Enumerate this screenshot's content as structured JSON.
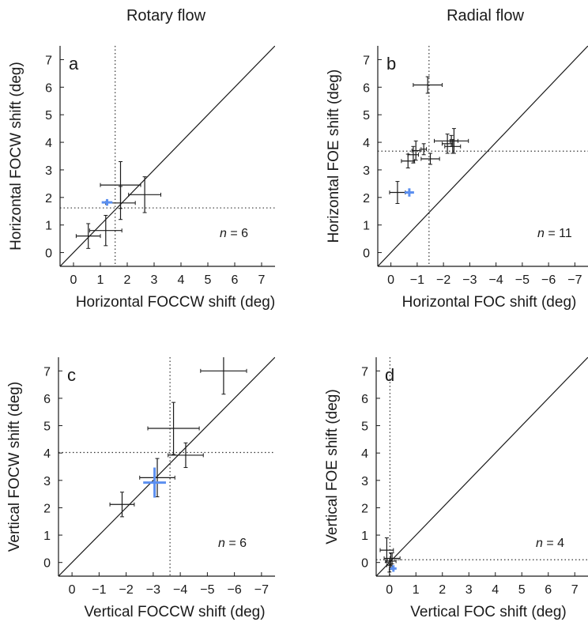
{
  "titles": {
    "left": "Rotary flow",
    "right": "Radial flow"
  },
  "chart_data": [
    {
      "panel": "a",
      "type": "scatter",
      "xlabel": "Horizontal FOCCW shift (deg)",
      "ylabel": "Horizontal FOCW shift (deg)",
      "xlim": [
        -0.5,
        7.5
      ],
      "ylim": [
        -0.5,
        7.5
      ],
      "x_ticks": [
        0,
        1,
        2,
        3,
        4,
        5,
        6,
        7
      ],
      "x_tick_labels": [
        "0",
        "1",
        "2",
        "3",
        "4",
        "5",
        "6",
        "7"
      ],
      "y_ticks": [
        0,
        1,
        2,
        3,
        4,
        5,
        6,
        7
      ],
      "y_tick_labels": [
        "0",
        "1",
        "2",
        "3",
        "4",
        "5",
        "6",
        "7"
      ],
      "n_label": "= 6",
      "n_symbol": "n",
      "ref_x": 1.55,
      "ref_y": 1.62,
      "diagonal": true,
      "points": [
        {
          "x": 0.55,
          "y": 0.6,
          "xerr": 0.45,
          "yerr": 0.45
        },
        {
          "x": 1.2,
          "y": 0.8,
          "xerr": 0.6,
          "yerr": 0.55
        },
        {
          "x": 1.75,
          "y": 1.8,
          "xerr": 0.55,
          "yerr": 0.6
        },
        {
          "x": 1.75,
          "y": 2.45,
          "xerr": 0.75,
          "yerr": 0.85
        },
        {
          "x": 2.65,
          "y": 2.1,
          "xerr": 0.6,
          "yerr": 0.65
        },
        {
          "x": 1.25,
          "y": 1.82,
          "xerr": 0.2,
          "yerr": 0.12,
          "highlight": true
        }
      ]
    },
    {
      "panel": "b",
      "type": "scatter",
      "xlabel": "Horizontal FOC shift (deg)",
      "ylabel": "Horizontal FOE shift (deg)",
      "xlim": [
        0.5,
        -7.5
      ],
      "ylim": [
        -0.5,
        7.5
      ],
      "x_ticks": [
        0,
        -1,
        -2,
        -3,
        -4,
        -5,
        -6,
        -7
      ],
      "x_tick_labels": [
        "0",
        "−1",
        "−2",
        "−3",
        "−4",
        "−5",
        "−6",
        "−7"
      ],
      "y_ticks": [
        0,
        1,
        2,
        3,
        4,
        5,
        6,
        7
      ],
      "y_tick_labels": [
        "0",
        "1",
        "2",
        "3",
        "4",
        "5",
        "6",
        "7"
      ],
      "n_label": "= 11",
      "n_symbol": "n",
      "ref_x": -1.45,
      "ref_y": 3.68,
      "diagonal": true,
      "points": [
        {
          "x": -0.25,
          "y": 2.18,
          "xerr": 0.3,
          "yerr": 0.4
        },
        {
          "x": -1.4,
          "y": 6.08,
          "xerr": 0.55,
          "yerr": 0.3
        },
        {
          "x": -0.65,
          "y": 3.32,
          "xerr": 0.25,
          "yerr": 0.25
        },
        {
          "x": -0.85,
          "y": 3.55,
          "xerr": 0.2,
          "yerr": 0.3
        },
        {
          "x": -0.95,
          "y": 3.7,
          "xerr": 0.15,
          "yerr": 0.35
        },
        {
          "x": -1.25,
          "y": 3.75,
          "xerr": 0.1,
          "yerr": 0.2
        },
        {
          "x": -1.5,
          "y": 3.4,
          "xerr": 0.35,
          "yerr": 0.2
        },
        {
          "x": -2.15,
          "y": 3.95,
          "xerr": 0.2,
          "yerr": 0.35
        },
        {
          "x": -2.3,
          "y": 4.05,
          "xerr": 0.65,
          "yerr": 0.2
        },
        {
          "x": -2.35,
          "y": 3.85,
          "xerr": 0.3,
          "yerr": 0.25
        },
        {
          "x": -2.4,
          "y": 4.05,
          "xerr": 0.15,
          "yerr": 0.45
        },
        {
          "x": -0.7,
          "y": 2.18,
          "xerr": 0.18,
          "yerr": 0.15,
          "highlight": true
        }
      ]
    },
    {
      "panel": "c",
      "type": "scatter",
      "xlabel": "Vertical FOCCW shift (deg)",
      "ylabel": "Vertical FOCW shift (deg)",
      "xlim": [
        0.5,
        -7.5
      ],
      "ylim": [
        -0.5,
        7.5
      ],
      "x_ticks": [
        0,
        -1,
        -2,
        -3,
        -4,
        -5,
        -6,
        -7
      ],
      "x_tick_labels": [
        "0",
        "−1",
        "−2",
        "−3",
        "−4",
        "−5",
        "−6",
        "−7"
      ],
      "y_ticks": [
        0,
        1,
        2,
        3,
        4,
        5,
        6,
        7
      ],
      "y_tick_labels": [
        "0",
        "1",
        "2",
        "3",
        "4",
        "5",
        "6",
        "7"
      ],
      "n_label": "= 6",
      "n_symbol": "n",
      "ref_x": -3.62,
      "ref_y": 4.02,
      "diagonal": true,
      "points": [
        {
          "x": -1.85,
          "y": 2.12,
          "xerr": 0.45,
          "yerr": 0.45
        },
        {
          "x": -3.15,
          "y": 3.1,
          "xerr": 0.65,
          "yerr": 0.7
        },
        {
          "x": -3.75,
          "y": 4.9,
          "xerr": 0.95,
          "yerr": 0.95
        },
        {
          "x": -4.2,
          "y": 3.92,
          "xerr": 0.65,
          "yerr": 0.45
        },
        {
          "x": -5.6,
          "y": 7.0,
          "xerr": 0.85,
          "yerr": 0.85
        },
        {
          "x": -3.05,
          "y": 2.92,
          "xerr": 0.42,
          "yerr": 0.55,
          "highlight": true
        }
      ]
    },
    {
      "panel": "d",
      "type": "scatter",
      "xlabel": "Vertical FOC shift (deg)",
      "ylabel": "Vertical FOE shift (deg)",
      "xlim": [
        -0.5,
        7.5
      ],
      "ylim": [
        -0.5,
        7.5
      ],
      "x_ticks": [
        0,
        1,
        2,
        3,
        4,
        5,
        6,
        7
      ],
      "x_tick_labels": [
        "0",
        "1",
        "2",
        "3",
        "4",
        "5",
        "6",
        "7"
      ],
      "y_ticks": [
        0,
        1,
        2,
        3,
        4,
        5,
        6,
        7
      ],
      "y_tick_labels": [
        "0",
        "1",
        "2",
        "3",
        "4",
        "5",
        "6",
        "7"
      ],
      "n_label": "= 4",
      "n_symbol": "n",
      "ref_x": 0.02,
      "ref_y": 0.1,
      "diagonal": true,
      "points": [
        {
          "x": -0.1,
          "y": 0.45,
          "xerr": 0.25,
          "yerr": 0.45
        },
        {
          "x": 0.05,
          "y": 0.05,
          "xerr": 0.2,
          "yerr": 0.3
        },
        {
          "x": 0.1,
          "y": 0.15,
          "xerr": 0.3,
          "yerr": 0.2
        },
        {
          "x": 0.0,
          "y": -0.1,
          "xerr": 0.1,
          "yerr": 0.25
        },
        {
          "x": 0.15,
          "y": -0.22,
          "xerr": 0.12,
          "yerr": 0.12,
          "highlight": true
        }
      ]
    }
  ],
  "colors": {
    "marker": "#1a1a1a",
    "highlight": "#5b8ff0",
    "reference": "#333333"
  }
}
